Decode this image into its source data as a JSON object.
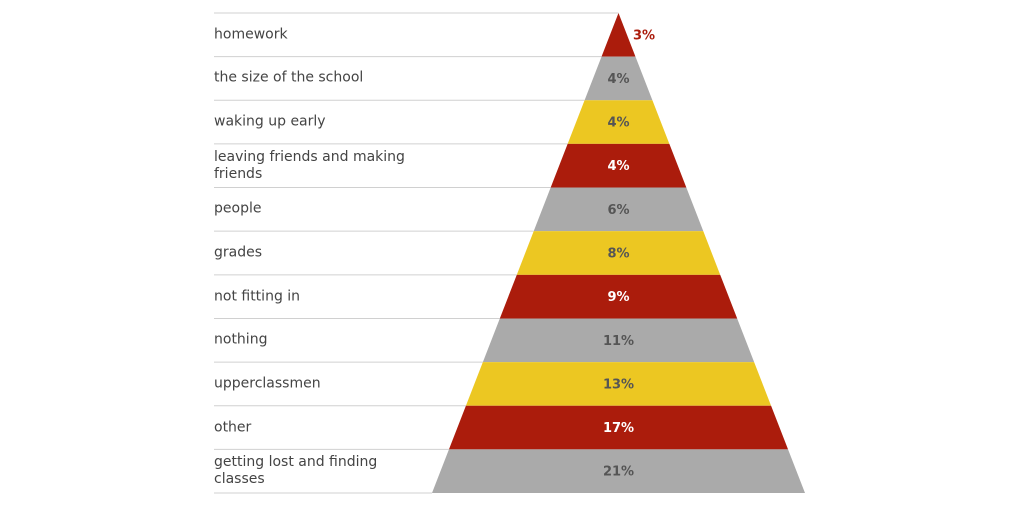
{
  "chart_data": {
    "type": "pyramid",
    "categories": [
      "homework",
      "the size of the school",
      "waking up early",
      "leaving friends and making friends",
      "people",
      "grades",
      "not fitting in",
      "nothing",
      "upperclassmen",
      "other",
      "getting lost and finding classes"
    ],
    "values": [
      3,
      4,
      4,
      4,
      6,
      8,
      9,
      11,
      13,
      17,
      21
    ],
    "value_labels": [
      "3%",
      "4%",
      "4%",
      "4%",
      "6%",
      "8%",
      "9%",
      "11%",
      "13%",
      "17%",
      "21%"
    ],
    "colors": [
      "#ab1c0c",
      "#aaaaaa",
      "#ecc722",
      "#ab1c0c",
      "#aaaaaa",
      "#ecc722",
      "#ab1c0c",
      "#aaaaaa",
      "#ecc722",
      "#ab1c0c",
      "#aaaaaa"
    ]
  }
}
